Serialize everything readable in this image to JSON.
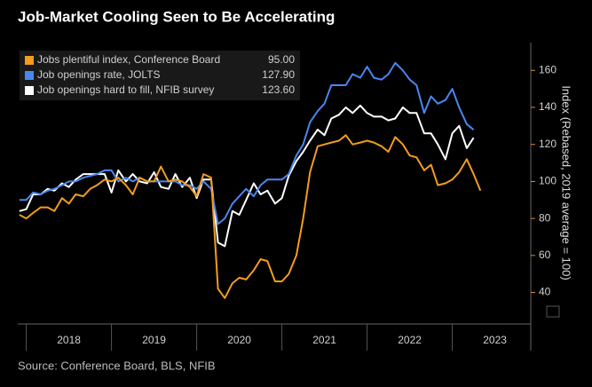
{
  "chart_data": {
    "type": "line",
    "title": "Job-Market Cooling Seen to Be Accelerating",
    "y_axis_label": "Index (Rebased, 2019 average = 100)",
    "source": "Source: Conference Board, BLS, NFIB",
    "x": [
      2017.92,
      2018.0,
      2018.08,
      2018.17,
      2018.25,
      2018.33,
      2018.42,
      2018.5,
      2018.58,
      2018.67,
      2018.75,
      2018.83,
      2018.92,
      2019.0,
      2019.08,
      2019.17,
      2019.25,
      2019.33,
      2019.42,
      2019.5,
      2019.58,
      2019.67,
      2019.75,
      2019.83,
      2019.92,
      2020.0,
      2020.08,
      2020.17,
      2020.25,
      2020.33,
      2020.42,
      2020.5,
      2020.58,
      2020.67,
      2020.75,
      2020.83,
      2020.92,
      2021.0,
      2021.08,
      2021.17,
      2021.25,
      2021.33,
      2021.42,
      2021.5,
      2021.58,
      2021.67,
      2021.75,
      2021.83,
      2021.92,
      2022.0,
      2022.08,
      2022.17,
      2022.25,
      2022.33,
      2022.42,
      2022.5,
      2022.58,
      2022.67,
      2022.75,
      2022.83,
      2022.92,
      2023.0,
      2023.08,
      2023.17,
      2023.25,
      2023.33
    ],
    "series": [
      {
        "name": "Jobs plentiful index, Conference Board",
        "legend_value": "95.00",
        "color": "#f39c1e",
        "values": [
          82,
          80,
          83,
          86,
          86,
          84,
          91,
          88,
          93,
          92,
          96,
          98,
          101,
          100,
          102,
          98,
          93,
          102,
          100,
          100,
          108,
          100,
          101,
          100,
          97,
          92,
          104,
          102,
          42,
          37,
          45,
          48,
          47,
          52,
          58,
          57,
          46,
          46,
          50,
          60,
          80,
          105,
          119,
          120,
          121,
          122,
          125,
          120,
          121,
          122,
          121,
          119,
          116,
          124,
          120,
          114,
          113,
          106,
          109,
          98,
          99,
          101,
          105,
          112,
          104,
          95
        ]
      },
      {
        "name": "Job openings rate, JOLTS",
        "legend_value": "127.90",
        "color": "#4a86f0",
        "values": [
          90,
          90,
          94,
          93,
          95,
          96,
          98,
          100,
          100,
          102,
          103,
          104,
          106,
          106,
          100,
          102,
          100,
          102,
          100,
          100,
          100,
          100,
          100,
          98,
          98,
          96,
          100,
          96,
          77,
          80,
          88,
          92,
          96,
          92,
          98,
          101,
          101,
          101,
          104,
          114,
          120,
          132,
          138,
          142,
          152,
          152,
          152,
          158,
          156,
          162,
          156,
          155,
          158,
          164,
          160,
          155,
          152,
          137,
          146,
          142,
          144,
          150,
          140,
          131,
          127.9,
          null
        ]
      },
      {
        "name": "Job openings hard to fill, NFIB survey",
        "legend_value": "123.60",
        "color": "#ffffff",
        "values": [
          84,
          85,
          93,
          93,
          96,
          95,
          99,
          97,
          101,
          104,
          104,
          104,
          104,
          94,
          106,
          100,
          104,
          100,
          99,
          105,
          97,
          96,
          104,
          97,
          102,
          91,
          101,
          101,
          67,
          65,
          84,
          82,
          90,
          99,
          93,
          95,
          88,
          91,
          103,
          111,
          116,
          122,
          128,
          125,
          134,
          136,
          140,
          137,
          141,
          137,
          135,
          135,
          133,
          134,
          140,
          137,
          137,
          126,
          126,
          120,
          112,
          126,
          130,
          118,
          123.6,
          null
        ]
      }
    ],
    "xlim": [
      2017.9,
      2023.9
    ],
    "xticks": [
      2018,
      2019,
      2020,
      2021,
      2022,
      2023
    ],
    "ylim": [
      23,
      175
    ],
    "yticks": [
      40,
      60,
      80,
      100,
      120,
      140,
      160
    ]
  }
}
